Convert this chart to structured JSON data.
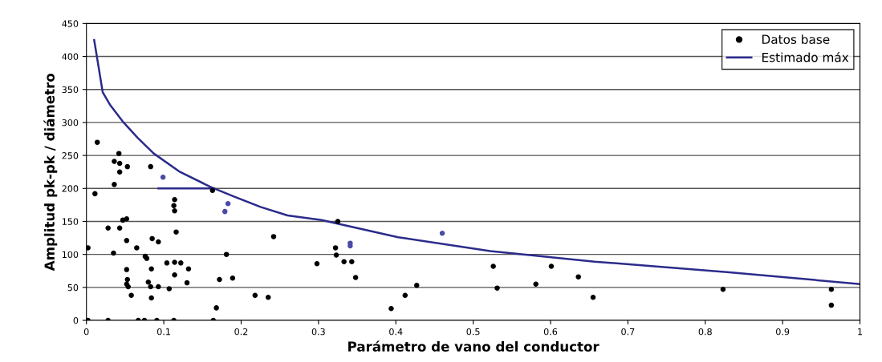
{
  "chart_data": {
    "type": "scatter",
    "xlabel": "Parámetro de vano del conductor",
    "ylabel": "Amplitud pk-pk / diámetro",
    "xlim": [
      0,
      1
    ],
    "xticks": [
      0,
      0.1,
      0.2,
      0.3,
      0.4,
      0.5,
      0.6,
      0.7,
      0.8,
      0.9,
      1
    ],
    "ylim": [
      0,
      450
    ],
    "yticks": [
      0,
      50,
      100,
      150,
      200,
      250,
      300,
      350,
      400,
      450
    ],
    "grid": "y",
    "legend": "top right",
    "series": [
      {
        "name": "Datos base",
        "marker": "circle",
        "color": "#000000",
        "x": [
          0.014,
          0.011,
          0.002,
          0.042,
          0.036,
          0.043,
          0.053,
          0.043,
          0.036,
          0.083,
          0.099,
          0.114,
          0.113,
          0.114,
          0.163,
          0.183,
          0.179,
          0.047,
          0.052,
          0.028,
          0.043,
          0.035,
          0.052,
          0.065,
          0.085,
          0.093,
          0.116,
          0.076,
          0.078,
          0.052,
          0.084,
          0.104,
          0.114,
          0.122,
          0.132,
          0.114,
          0.053,
          0.052,
          0.054,
          0.058,
          0.08,
          0.083,
          0.093,
          0.107,
          0.13,
          0.084,
          0.172,
          0.189,
          0.181,
          0.168,
          0.218,
          0.235,
          0.242,
          0.298,
          0.002,
          0.028,
          0.067,
          0.075,
          0.091,
          0.113,
          0.164,
          0.325,
          0.322,
          0.323,
          0.341,
          0.341,
          0.333,
          0.343,
          0.348,
          0.46,
          0.394,
          0.412,
          0.427,
          0.526,
          0.531,
          0.581,
          0.601,
          0.636,
          0.655,
          0.823,
          0.963,
          0.963
        ],
        "values": [
          270,
          192,
          110,
          253,
          241,
          238,
          233,
          225,
          206,
          233,
          217,
          183,
          174,
          166,
          197,
          177,
          165,
          152,
          154,
          140,
          140,
          102,
          121,
          110,
          124,
          119,
          134,
          97,
          94,
          77,
          78,
          87,
          88,
          87,
          78,
          69,
          62,
          55,
          51,
          38,
          58,
          51,
          51,
          48,
          57,
          34,
          62,
          64,
          100,
          19,
          38,
          35,
          127,
          86,
          0,
          0,
          0,
          0,
          0,
          0,
          0,
          150,
          110,
          99,
          117,
          113,
          89,
          89,
          65,
          132,
          18,
          38,
          53,
          82,
          49,
          55,
          82,
          66,
          35,
          47,
          47,
          23
        ],
        "colors": [
          "#000000",
          "#000000",
          "#000000",
          "#000000",
          "#000000",
          "#000000",
          "#000000",
          "#000000",
          "#000000",
          "#000000",
          "#4a4aa8",
          "#000000",
          "#000000",
          "#000000",
          "#000000",
          "#4a4aa8",
          "#4a4aa8",
          "#000000",
          "#000000",
          "#000000",
          "#000000",
          "#000000",
          "#000000",
          "#000000",
          "#000000",
          "#000000",
          "#000000",
          "#000000",
          "#000000",
          "#000000",
          "#000000",
          "#000000",
          "#000000",
          "#000000",
          "#000000",
          "#000000",
          "#000000",
          "#000000",
          "#000000",
          "#000000",
          "#000000",
          "#000000",
          "#000000",
          "#000000",
          "#000000",
          "#000000",
          "#000000",
          "#000000",
          "#000000",
          "#000000",
          "#000000",
          "#000000",
          "#000000",
          "#000000",
          "#000000",
          "#000000",
          "#000000",
          "#000000",
          "#000000",
          "#000000",
          "#000000",
          "#000000",
          "#000000",
          "#000000",
          "#4a4aa8",
          "#4a4aa8",
          "#000000",
          "#000000",
          "#000000",
          "#4a4aa8",
          "#000000",
          "#000000",
          "#000000",
          "#000000",
          "#000000",
          "#000000",
          "#000000",
          "#000000",
          "#000000",
          "#000000",
          "#000000",
          "#000000"
        ]
      },
      {
        "name": "Estimado máx",
        "type": "line",
        "color": "#2b2b8c",
        "line_style": "solid",
        "x": [
          0.01,
          0.016,
          0.021,
          0.031,
          0.048,
          0.066,
          0.087,
          0.121,
          0.161,
          0.19,
          0.225,
          0.26,
          0.304,
          0.403,
          0.522,
          0.657,
          0.831,
          1.0
        ],
        "values": [
          425,
          382,
          346,
          326,
          300,
          277,
          253,
          225,
          202,
          188,
          172,
          159,
          152,
          126,
          105,
          89,
          73,
          55
        ]
      },
      {
        "type": "line",
        "color": "#2b2b8c",
        "line_style": "solid",
        "x": [
          0.093,
          0.161
        ],
        "values": [
          200,
          200
        ]
      }
    ]
  }
}
